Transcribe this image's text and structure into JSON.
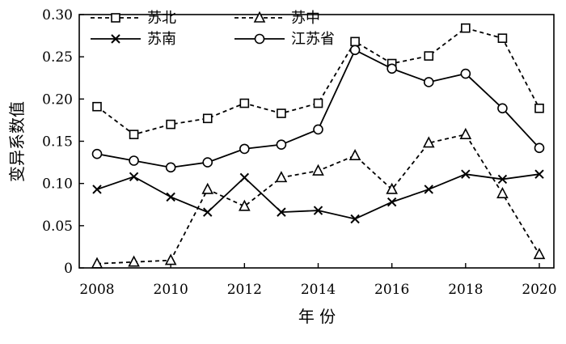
{
  "chart_data": {
    "type": "line",
    "x": [
      2008,
      2009,
      2010,
      2011,
      2012,
      2013,
      2014,
      2015,
      2016,
      2017,
      2018,
      2019,
      2020
    ],
    "xticks": [
      "2008",
      "2010",
      "2012",
      "2014",
      "2016",
      "2018",
      "2020"
    ],
    "yticks": [
      "0",
      "0.05",
      "0.10",
      "0.15",
      "0.20",
      "0.25",
      "0.30"
    ],
    "xlim": [
      2008,
      2020
    ],
    "ylim": [
      0,
      0.3
    ],
    "xlabel": "年  份",
    "ylabel": "变异系数值",
    "legend_position": "top-left",
    "grid": false,
    "series": [
      {
        "name": "苏北",
        "marker": "square",
        "line": "dashed",
        "values": [
          0.191,
          0.158,
          0.17,
          0.177,
          0.195,
          0.183,
          0.195,
          0.268,
          0.242,
          0.251,
          0.284,
          0.272,
          0.189
        ]
      },
      {
        "name": "苏中",
        "marker": "triangle",
        "line": "dashed",
        "values": [
          0.005,
          0.007,
          0.009,
          0.093,
          0.073,
          0.107,
          0.115,
          0.133,
          0.093,
          0.148,
          0.158,
          0.088,
          0.016
        ]
      },
      {
        "name": "苏南",
        "marker": "x",
        "line": "solid",
        "values": [
          0.093,
          0.108,
          0.084,
          0.066,
          0.107,
          0.066,
          0.068,
          0.058,
          0.078,
          0.093,
          0.111,
          0.105,
          0.111
        ]
      },
      {
        "name": "江苏省",
        "marker": "circle",
        "line": "solid",
        "values": [
          0.135,
          0.127,
          0.119,
          0.125,
          0.141,
          0.146,
          0.164,
          0.258,
          0.236,
          0.22,
          0.23,
          0.189,
          0.142
        ]
      }
    ]
  }
}
